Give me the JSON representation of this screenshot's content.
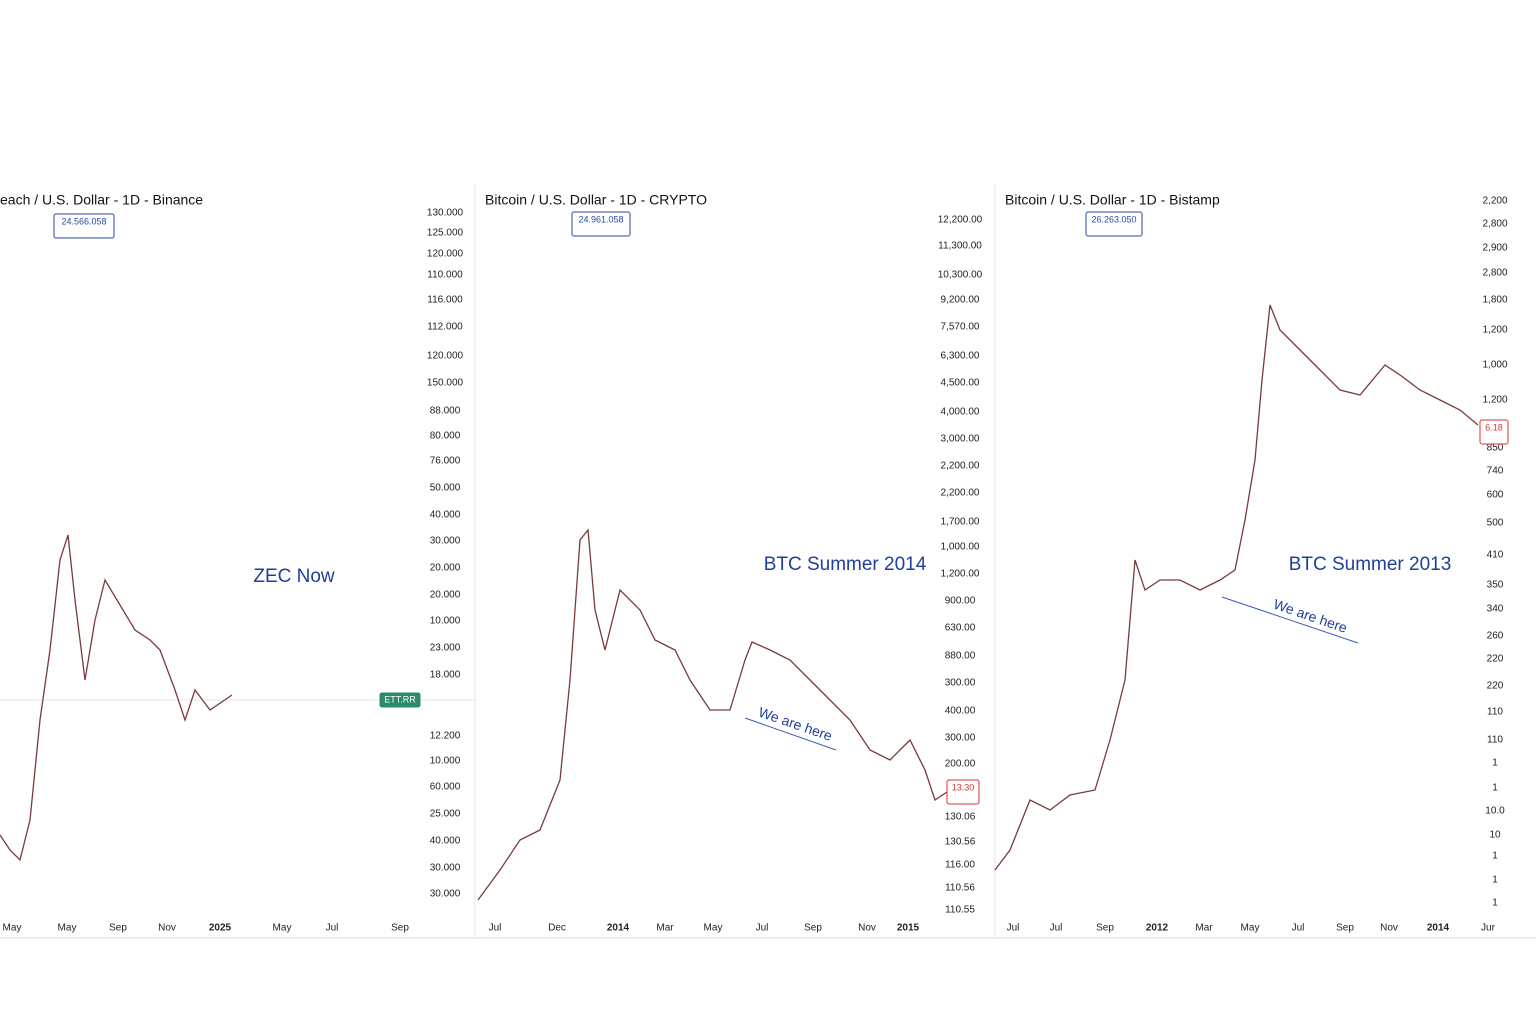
{
  "panels": [
    {
      "title": "each / U.S. Dollar - 1D - Binance",
      "badges": [
        "24.566.058",
        "ETT.RR"
      ],
      "annotation": "ZEC Now",
      "yaxis": [
        "130.000",
        "125.000",
        "120.000",
        "110.000",
        "116.000",
        "112.000",
        "120.000",
        "150.000",
        "88.000",
        "80.000",
        "76.000",
        "50.000",
        "40.000",
        "30.000",
        "20.000",
        "20.000",
        "10.000",
        "23.000",
        "18.000",
        "12.200",
        "10.000",
        "60.000",
        "25.000",
        "40.000",
        "30.000",
        "30.000"
      ],
      "xaxis": [
        "May",
        "May",
        "Sep",
        "Nov",
        "2025",
        "May",
        "Jul",
        "Sep"
      ]
    },
    {
      "title": "Bitcoin / U.S. Dollar - 1D - CRYPTO",
      "badges": [
        "24.961.058",
        "13.30"
      ],
      "annotation": "BTC Summer 2014",
      "note": "We are here",
      "yaxis": [
        "12,200.00",
        "11,300.00",
        "10,300.00",
        "9,200.00",
        "7,570.00",
        "6,300.00",
        "4,500.00",
        "4,000.00",
        "3,000.00",
        "2,200.00",
        "2,200.00",
        "1,700.00",
        "1,000.00",
        "1,200.00",
        "900.00",
        "630.00",
        "880.00",
        "300.00",
        "400.00",
        "300.00",
        "200.00",
        "130.06",
        "130.56",
        "116.00",
        "110.56",
        "110.55"
      ],
      "xaxis": [
        "Jul",
        "Dec",
        "2014",
        "Mar",
        "May",
        "Jul",
        "Sep",
        "Nov",
        "2015"
      ]
    },
    {
      "title": "Bitcoin / U.S. Dollar - 1D - Bistamp",
      "badges": [
        "26.263.050",
        "6.18"
      ],
      "annotation": "BTC Summer 2013",
      "note": "We are here",
      "yaxis": [
        "2,200",
        "2,800",
        "2,900",
        "2,800",
        "1,800",
        "1,200",
        "1,000",
        "1,200",
        "850",
        "740",
        "600",
        "500",
        "410",
        "350",
        "340",
        "260",
        "220",
        "220",
        "110",
        "110",
        "1",
        "1",
        "10.0",
        "10",
        "1",
        "1",
        "1"
      ],
      "xaxis": [
        "Jul",
        "Jul",
        "Sep",
        "2012",
        "Mar",
        "May",
        "Jul",
        "Sep",
        "Nov",
        "2014",
        "Jur"
      ]
    }
  ]
}
